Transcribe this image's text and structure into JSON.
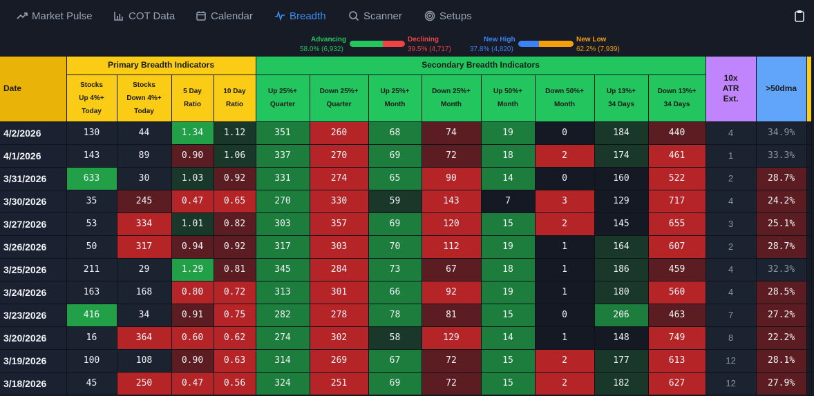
{
  "nav": {
    "items": [
      {
        "label": "Market Pulse",
        "icon": "trend-up-icon"
      },
      {
        "label": "COT Data",
        "icon": "bar-chart-icon"
      },
      {
        "label": "Calendar",
        "icon": "calendar-icon"
      },
      {
        "label": "Breadth",
        "icon": "pulse-icon",
        "active": true
      },
      {
        "label": "Scanner",
        "icon": "search-icon"
      },
      {
        "label": "Setups",
        "icon": "target-icon"
      }
    ],
    "clipboard_icon": "clipboard-icon"
  },
  "breadth_bars": {
    "advancing": {
      "label": "Advancing",
      "value": "58.0% (6,932)",
      "fraction": 0.58
    },
    "declining": {
      "label": "Declining",
      "value": "39.5% (4,717)",
      "fraction": 0.395
    },
    "new_high": {
      "label": "New High",
      "value": "37.8% (4,820)",
      "fraction": 0.378
    },
    "new_low": {
      "label": "New Low",
      "value": "62.2% (7,939)",
      "fraction": 0.622
    },
    "colors": {
      "advancing": "#22c55e",
      "declining": "#ef4444",
      "new_high": "#3b82f6",
      "new_low": "#f59e0b"
    }
  },
  "table": {
    "date_header": "Date",
    "group_primary": "Primary Breadth Indicators",
    "group_secondary": "Secondary Breadth Indicators",
    "atr_header": "10x ATR Ext.",
    "dma_header": ">50dma",
    "columns": [
      [
        "Stocks",
        "Up 4%+",
        "Today"
      ],
      [
        "Stocks",
        "Down 4%+",
        "Today"
      ],
      [
        "5 Day",
        "Ratio"
      ],
      [
        "10 Day",
        "Ratio"
      ],
      [
        "Up 25%+",
        "Quarter"
      ],
      [
        "Down 25%+",
        "Quarter"
      ],
      [
        "Up 25%+",
        "Month"
      ],
      [
        "Down 25%+",
        "Month"
      ],
      [
        "Up 50%+",
        "Month"
      ],
      [
        "Down 50%+",
        "Month"
      ],
      [
        "Up 13%+",
        "34 Days"
      ],
      [
        "Down 13%+",
        "34 Days"
      ]
    ],
    "rows": [
      {
        "date": "4/2/2026",
        "values": [
          "130",
          "44",
          "1.34",
          "1.12",
          "351",
          "260",
          "68",
          "74",
          "19",
          "0",
          "184",
          "440"
        ],
        "atr": "4",
        "dma": "34.9%"
      },
      {
        "date": "4/1/2026",
        "values": [
          "143",
          "89",
          "0.90",
          "1.06",
          "337",
          "270",
          "69",
          "72",
          "18",
          "2",
          "174",
          "461"
        ],
        "atr": "1",
        "dma": "33.3%"
      },
      {
        "date": "3/31/2026",
        "values": [
          "633",
          "30",
          "1.03",
          "0.92",
          "331",
          "274",
          "65",
          "90",
          "14",
          "0",
          "160",
          "522"
        ],
        "atr": "2",
        "dma": "28.7%"
      },
      {
        "date": "3/30/2026",
        "values": [
          "35",
          "245",
          "0.47",
          "0.65",
          "270",
          "330",
          "59",
          "143",
          "7",
          "3",
          "129",
          "717"
        ],
        "atr": "4",
        "dma": "24.2%"
      },
      {
        "date": "3/27/2026",
        "values": [
          "53",
          "334",
          "1.01",
          "0.82",
          "303",
          "357",
          "69",
          "120",
          "15",
          "2",
          "145",
          "655"
        ],
        "atr": "3",
        "dma": "25.1%"
      },
      {
        "date": "3/26/2026",
        "values": [
          "50",
          "317",
          "0.94",
          "0.92",
          "317",
          "303",
          "70",
          "112",
          "19",
          "1",
          "164",
          "607"
        ],
        "atr": "2",
        "dma": "28.7%"
      },
      {
        "date": "3/25/2026",
        "values": [
          "211",
          "29",
          "1.29",
          "0.81",
          "345",
          "284",
          "73",
          "67",
          "18",
          "1",
          "186",
          "459"
        ],
        "atr": "4",
        "dma": "32.3%"
      },
      {
        "date": "3/24/2026",
        "values": [
          "163",
          "168",
          "0.80",
          "0.72",
          "313",
          "301",
          "66",
          "92",
          "19",
          "1",
          "180",
          "560"
        ],
        "atr": "4",
        "dma": "28.5%"
      },
      {
        "date": "3/23/2026",
        "values": [
          "416",
          "34",
          "0.91",
          "0.75",
          "282",
          "278",
          "78",
          "81",
          "15",
          "0",
          "206",
          "463"
        ],
        "atr": "7",
        "dma": "27.2%"
      },
      {
        "date": "3/20/2026",
        "values": [
          "16",
          "364",
          "0.60",
          "0.62",
          "274",
          "302",
          "58",
          "129",
          "14",
          "1",
          "148",
          "749"
        ],
        "atr": "8",
        "dma": "22.2%"
      },
      {
        "date": "3/19/2026",
        "values": [
          "100",
          "108",
          "0.90",
          "0.63",
          "314",
          "269",
          "67",
          "72",
          "15",
          "2",
          "177",
          "613"
        ],
        "atr": "12",
        "dma": "28.1%"
      },
      {
        "date": "3/18/2026",
        "values": [
          "45",
          "250",
          "0.47",
          "0.56",
          "324",
          "251",
          "69",
          "72",
          "15",
          "2",
          "182",
          "627"
        ],
        "atr": "12",
        "dma": "27.9%"
      }
    ]
  }
}
